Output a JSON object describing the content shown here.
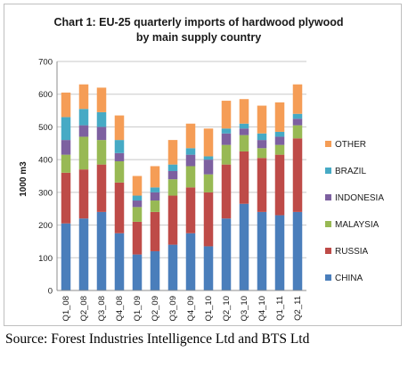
{
  "chart_data": {
    "type": "bar",
    "stacked": true,
    "title": [
      "Chart 1: EU-25 quarterly imports of hardwood plywood",
      "by main supply country"
    ],
    "xlabel": "",
    "ylabel": "1000 m3",
    "ylim": [
      0,
      700
    ],
    "yticks": [
      0,
      100,
      200,
      300,
      400,
      500,
      600,
      700
    ],
    "grid": true,
    "legend_position": "right",
    "categories": [
      "Q1_08",
      "Q2_08",
      "Q3_08",
      "Q4_08",
      "Q1_09",
      "Q2_09",
      "Q3_09",
      "Q4_09",
      "Q1_10",
      "Q2_10",
      "Q3_10",
      "Q4_10",
      "Q1_11",
      "Q2_11"
    ],
    "series": [
      {
        "name": "CHINA",
        "color": "#4a7ebb",
        "values": [
          205,
          220,
          240,
          175,
          110,
          120,
          140,
          175,
          135,
          220,
          265,
          240,
          230,
          240
        ]
      },
      {
        "name": "RUSSIA",
        "color": "#be4b48",
        "values": [
          155,
          150,
          145,
          155,
          100,
          120,
          150,
          140,
          165,
          165,
          160,
          165,
          185,
          225
        ]
      },
      {
        "name": "MALAYSIA",
        "color": "#98b954",
        "values": [
          55,
          100,
          75,
          65,
          45,
          35,
          50,
          65,
          55,
          60,
          50,
          30,
          30,
          40
        ]
      },
      {
        "name": "INDONESIA",
        "color": "#7d60a0",
        "values": [
          45,
          35,
          40,
          25,
          20,
          25,
          25,
          35,
          45,
          35,
          20,
          25,
          25,
          20
        ]
      },
      {
        "name": "BRAZIL",
        "color": "#46aac5",
        "values": [
          70,
          50,
          45,
          40,
          15,
          15,
          20,
          20,
          10,
          15,
          15,
          20,
          15,
          15
        ]
      },
      {
        "name": "OTHER",
        "color": "#f59d56",
        "values": [
          75,
          75,
          75,
          75,
          60,
          65,
          75,
          75,
          85,
          85,
          75,
          85,
          90,
          90
        ]
      }
    ]
  },
  "source_note": "Source: Forest Industries Intelligence Ltd and BTS Ltd"
}
